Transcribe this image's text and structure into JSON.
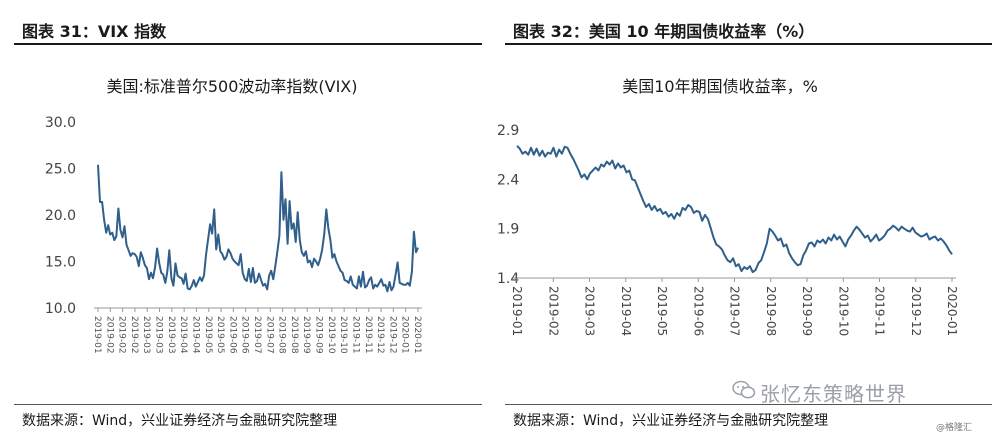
{
  "left": {
    "figure_title": "图表 31：VIX 指数",
    "source": "数据来源：Wind，兴业证券经济与金融研究院整理"
  },
  "right": {
    "figure_title": "图表 32：美国 10 年期国债收益率（%）",
    "source": "数据来源：Wind，兴业证券经济与金融研究院整理"
  },
  "watermark": {
    "text": "张忆东策略世界",
    "icon": "wechat-icon"
  },
  "credit": "@格隆汇",
  "colors": {
    "series": "#2f5f8a"
  },
  "chart_data": [
    {
      "type": "line",
      "title": "美国:标准普尔500波动率指数(VIX)",
      "ylim": [
        10,
        30
      ],
      "yticks": [
        "10.0",
        "15.0",
        "20.0",
        "25.0",
        "30.0"
      ],
      "xticks": [
        "2019-01",
        "2019-02",
        "2019-02",
        "2019-02",
        "2019-03",
        "2019-03",
        "2019-03",
        "2019-04",
        "2019-04",
        "2019-05",
        "2019-05",
        "2019-06",
        "2019-06",
        "2019-07",
        "2019-07",
        "2019-08",
        "2019-08",
        "2019-09",
        "2019-09",
        "2019-10",
        "2019-10",
        "2019-11",
        "2019-11",
        "2019-12",
        "2019-12",
        "2020-01",
        "2020-01"
      ],
      "grid": false,
      "series": [
        {
          "values": [
            25.4,
            21.4,
            21.4,
            19.5,
            18.1,
            18.9,
            17.9,
            18.1,
            17.3,
            17.7,
            20.7,
            18.4,
            17.6,
            18.8,
            16.8,
            16.2,
            15.6,
            15.9,
            15.8,
            15.5,
            14.5,
            16.0,
            15.4,
            14.6,
            14.3,
            13.1,
            13.8,
            13.2,
            14.4,
            16.4,
            14.9,
            13.8,
            13.6,
            12.7,
            13.9,
            16.2,
            13.2,
            12.4,
            14.8,
            13.5,
            13.3,
            13.2,
            12.6,
            13.7,
            12.1,
            12.0,
            12.4,
            13.0,
            12.3,
            12.8,
            13.3,
            12.9,
            13.5,
            15.7,
            17.4,
            19.0,
            18.0,
            20.6,
            16.3,
            17.9,
            16.1,
            15.8,
            15.2,
            15.5,
            16.3,
            15.9,
            15.3,
            15.0,
            14.8,
            14.6,
            15.8,
            13.8,
            13.1,
            12.9,
            14.2,
            12.8,
            14.3,
            12.7,
            12.9,
            13.7,
            13.0,
            12.4,
            12.6,
            12.0,
            13.5,
            14.0,
            13.1,
            14.5,
            16.1,
            17.8,
            24.6,
            19.5,
            21.7,
            16.9,
            21.5,
            18.5,
            19.1,
            17.1,
            20.3,
            17.3,
            16.0,
            15.6,
            16.1,
            14.9,
            15.1,
            14.4,
            15.3,
            15.0,
            14.6,
            15.3,
            16.3,
            17.9,
            20.6,
            18.6,
            17.3,
            15.4,
            15.8,
            15.0,
            14.5,
            14.0,
            13.8,
            13.0,
            12.9,
            12.7,
            13.4,
            12.5,
            12.3,
            12.1,
            13.4,
            12.3,
            13.9,
            12.2,
            12.4,
            13.0,
            13.3,
            12.1,
            12.5,
            12.3,
            12.7,
            13.1,
            12.4,
            12.5,
            11.8,
            12.8,
            11.9,
            12.3,
            13.6,
            14.9,
            12.7,
            12.6,
            12.5,
            12.5,
            12.7,
            12.4,
            13.9,
            18.2,
            16.0,
            16.5
          ]
        }
      ]
    },
    {
      "type": "line",
      "title": "美国10年期国债收益率，%",
      "ylim": [
        1.4,
        2.9
      ],
      "yticks": [
        "1.4",
        "1.9",
        "2.4",
        "2.9"
      ],
      "xticks": [
        "2019-01",
        "2019-02",
        "2019-03",
        "2019-04",
        "2019-05",
        "2019-06",
        "2019-07",
        "2019-08",
        "2019-09",
        "2019-10",
        "2019-11",
        "2019-12",
        "2020-01"
      ],
      "grid": false,
      "series": [
        {
          "values": [
            2.74,
            2.71,
            2.66,
            2.68,
            2.65,
            2.72,
            2.65,
            2.71,
            2.64,
            2.69,
            2.63,
            2.67,
            2.66,
            2.72,
            2.63,
            2.7,
            2.66,
            2.73,
            2.72,
            2.66,
            2.61,
            2.55,
            2.49,
            2.42,
            2.45,
            2.4,
            2.46,
            2.49,
            2.52,
            2.49,
            2.55,
            2.53,
            2.58,
            2.55,
            2.59,
            2.51,
            2.56,
            2.52,
            2.54,
            2.47,
            2.49,
            2.4,
            2.39,
            2.32,
            2.25,
            2.18,
            2.12,
            2.15,
            2.09,
            2.13,
            2.08,
            2.1,
            2.05,
            2.07,
            2.02,
            2.05,
            2.0,
            2.06,
            2.03,
            2.11,
            2.09,
            2.14,
            2.12,
            2.06,
            2.08,
            2.07,
            1.98,
            2.04,
            2.0,
            1.91,
            1.81,
            1.74,
            1.72,
            1.69,
            1.63,
            1.58,
            1.56,
            1.6,
            1.52,
            1.54,
            1.47,
            1.51,
            1.49,
            1.52,
            1.46,
            1.48,
            1.55,
            1.58,
            1.66,
            1.75,
            1.9,
            1.87,
            1.83,
            1.78,
            1.8,
            1.72,
            1.74,
            1.65,
            1.6,
            1.56,
            1.53,
            1.54,
            1.63,
            1.68,
            1.75,
            1.76,
            1.72,
            1.78,
            1.76,
            1.79,
            1.75,
            1.81,
            1.78,
            1.84,
            1.79,
            1.82,
            1.77,
            1.72,
            1.79,
            1.83,
            1.88,
            1.92,
            1.89,
            1.85,
            1.81,
            1.83,
            1.77,
            1.8,
            1.84,
            1.78,
            1.8,
            1.83,
            1.88,
            1.9,
            1.93,
            1.91,
            1.88,
            1.92,
            1.9,
            1.88,
            1.87,
            1.91,
            1.86,
            1.84,
            1.82,
            1.83,
            1.85,
            1.79,
            1.81,
            1.82,
            1.78,
            1.8,
            1.77,
            1.73,
            1.68,
            1.64
          ]
        }
      ]
    }
  ]
}
